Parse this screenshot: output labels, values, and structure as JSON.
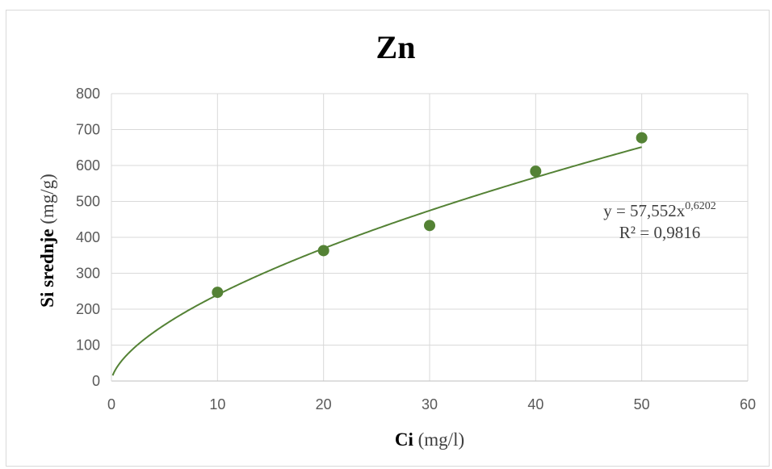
{
  "chart_data": {
    "type": "scatter",
    "title": "Zn",
    "xlabel_bold": "Ci",
    "xlabel_unit": "(mg/l)",
    "ylabel_bold": "Si srednje",
    "ylabel_unit": "(mg/g)",
    "xlim": [
      0,
      60
    ],
    "ylim": [
      0,
      800
    ],
    "xticks": [
      0,
      10,
      20,
      30,
      40,
      50,
      60
    ],
    "yticks": [
      0,
      100,
      200,
      300,
      400,
      500,
      600,
      700,
      800
    ],
    "grid": true,
    "series": [
      {
        "x": [
          10,
          20,
          30,
          40,
          50
        ],
        "y": [
          247,
          363,
          433,
          584,
          677
        ],
        "color": "#548235"
      }
    ],
    "trendline": {
      "type": "power",
      "coefficient": 57.552,
      "exponent": 0.6202,
      "x_range": [
        0.12,
        50
      ],
      "color": "#548235",
      "equation_prefix": "y = 57,552x",
      "equation_exponent": "0,6202",
      "r_squared_label": "R² = 0,9816"
    }
  }
}
